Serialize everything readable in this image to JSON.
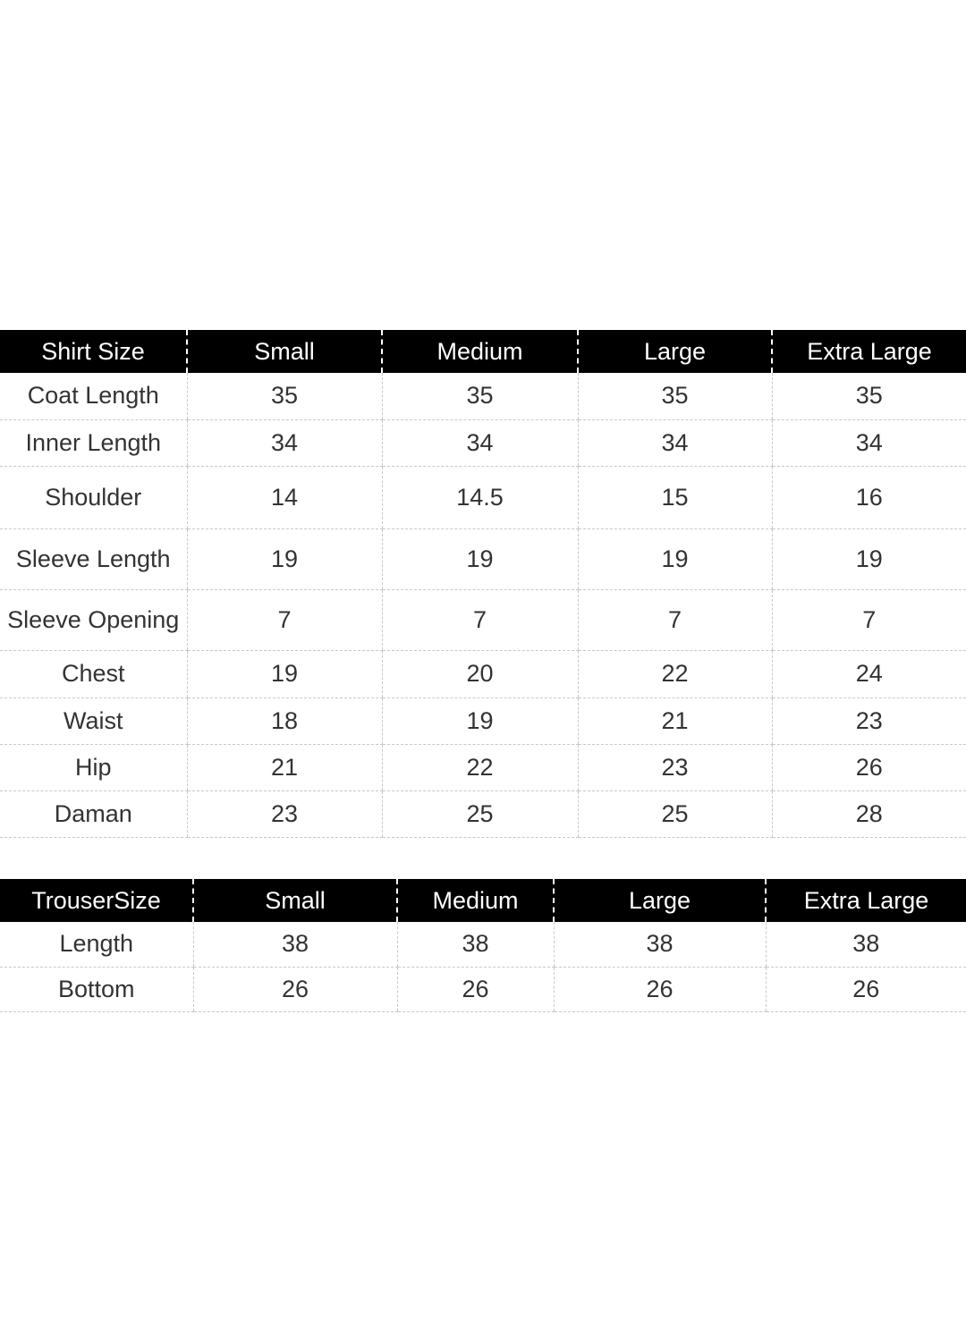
{
  "shirt_table": {
    "headers": [
      "Shirt Size",
      "Small",
      "Medium",
      "Large",
      "Extra Large"
    ],
    "rows": [
      [
        "Coat Length",
        "35",
        "35",
        "35",
        "35"
      ],
      [
        "Inner Length",
        "34",
        "34",
        "34",
        "34"
      ],
      [
        "Shoulder",
        "14",
        "14.5",
        "15",
        "16"
      ],
      [
        "Sleeve Length",
        "19",
        "19",
        "19",
        "19"
      ],
      [
        "Sleeve Opening",
        "7",
        "7",
        "7",
        "7"
      ],
      [
        "Chest",
        "19",
        "20",
        "22",
        "24"
      ],
      [
        "Waist",
        "18",
        "19",
        "21",
        "23"
      ],
      [
        "Hip",
        "21",
        "22",
        "23",
        "26"
      ],
      [
        "Daman",
        "23",
        "25",
        "25",
        "28"
      ]
    ]
  },
  "trouser_table": {
    "headers": [
      "TrouserSize",
      "Small",
      "Medium",
      "Large",
      "Extra Large"
    ],
    "rows": [
      [
        "Length",
        "38",
        "38",
        "38",
        "38"
      ],
      [
        "Bottom",
        "26",
        "26",
        "26",
        "26"
      ]
    ]
  }
}
